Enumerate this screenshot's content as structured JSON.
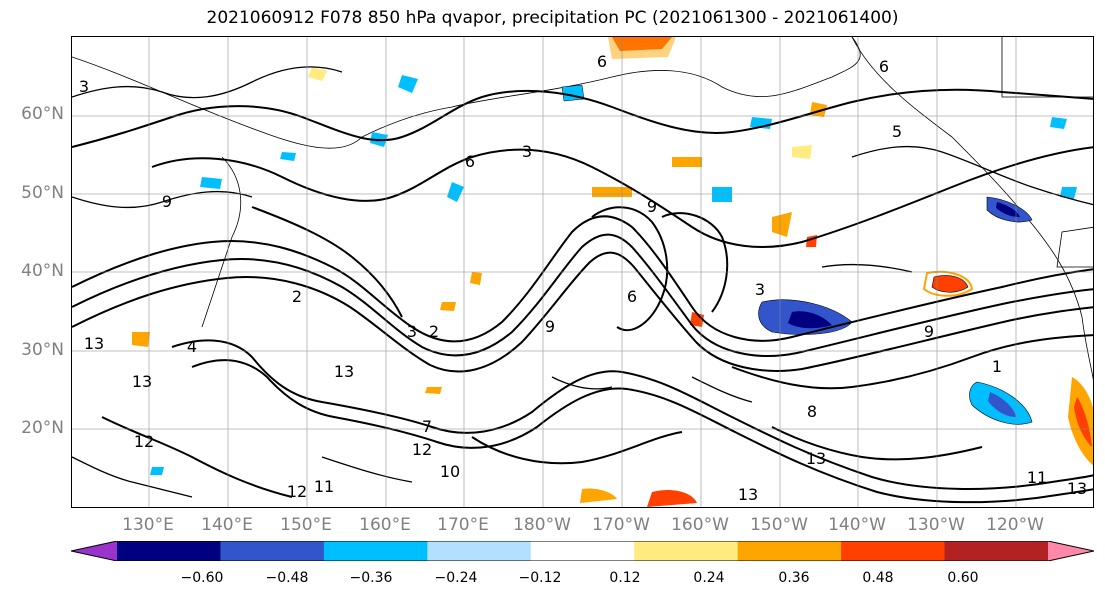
{
  "title": "2021060912 F078 850 hPa qvapor, precipitation PC (2021061300 - 2021061400)",
  "map": {
    "lat_labels": [
      "60°N",
      "50°N",
      "40°N",
      "30°N",
      "20°N"
    ],
    "lon_labels": [
      "130°E",
      "140°E",
      "150°E",
      "160°E",
      "170°E",
      "180°W",
      "170°W",
      "160°W",
      "150°W",
      "140°W",
      "130°W",
      "120°W"
    ],
    "contour_labels": [
      "3",
      "6",
      "9",
      "2",
      "3",
      "6",
      "2",
      "3",
      "13",
      "13",
      "12",
      "13",
      "11",
      "12",
      "10",
      "7",
      "9",
      "6",
      "9",
      "13",
      "11",
      "13",
      "9",
      "12",
      "13",
      "8",
      "6",
      "5",
      "3",
      "1",
      "4"
    ],
    "grid": true,
    "land_color": "#ffffff",
    "contour_color": "#000000"
  },
  "colorbar": {
    "colors": [
      "#9933cc",
      "#000080",
      "#3355cc",
      "#00bfff",
      "#b3e0ff",
      "#ffffff",
      "#ffeb80",
      "#ffa500",
      "#ff4000",
      "#b22222",
      "#ff88aa"
    ],
    "ticks": [
      "−0.60",
      "−0.48",
      "−0.36",
      "−0.24",
      "−0.12",
      "0.12",
      "0.24",
      "0.36",
      "0.48",
      "0.60"
    ]
  }
}
